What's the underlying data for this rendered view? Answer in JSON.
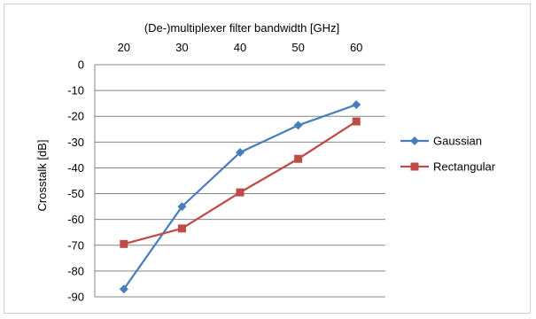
{
  "chart_data": {
    "type": "line",
    "title": "",
    "xlabel": "(De-)multiplexer filter bandwidth [GHz]",
    "ylabel": "Crosstalk [dB]",
    "x": [
      20,
      30,
      40,
      50,
      60
    ],
    "x_ticks": [
      "20",
      "30",
      "40",
      "50",
      "60"
    ],
    "xlim": [
      20,
      60
    ],
    "x_axis_position": "top",
    "ylim": [
      -90,
      0
    ],
    "y_ticks": [
      "0",
      "-10",
      "-20",
      "-30",
      "-40",
      "-50",
      "-60",
      "-70",
      "-80",
      "-90"
    ],
    "grid": "horizontal",
    "legend_position": "right",
    "series": [
      {
        "name": "Gaussian",
        "values": [
          -87,
          -55,
          -34,
          -23.5,
          -15.5
        ],
        "color": "#4a7ebb",
        "marker": "diamond"
      },
      {
        "name": "Rectangular",
        "values": [
          -69.5,
          -63.5,
          -49.5,
          -36.5,
          -22
        ],
        "color": "#be4b48",
        "marker": "square"
      }
    ]
  }
}
